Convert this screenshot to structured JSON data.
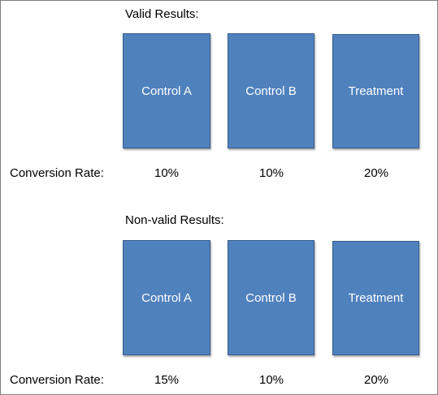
{
  "sections": [
    {
      "title": "Valid Results:",
      "groups": [
        "Control A",
        "Control B",
        "Treatment"
      ],
      "row_label": "Conversion Rate:",
      "rates": [
        "10%",
        "10%",
        "20%"
      ]
    },
    {
      "title": "Non-valid Results:",
      "groups": [
        "Control A",
        "Control B",
        "Treatment"
      ],
      "row_label": "Conversion Rate:",
      "rates": [
        "15%",
        "10%",
        "20%"
      ]
    }
  ],
  "colors": {
    "box_fill": "#4f81bd",
    "box_border": "#385d8a",
    "box_text": "#ffffff"
  }
}
